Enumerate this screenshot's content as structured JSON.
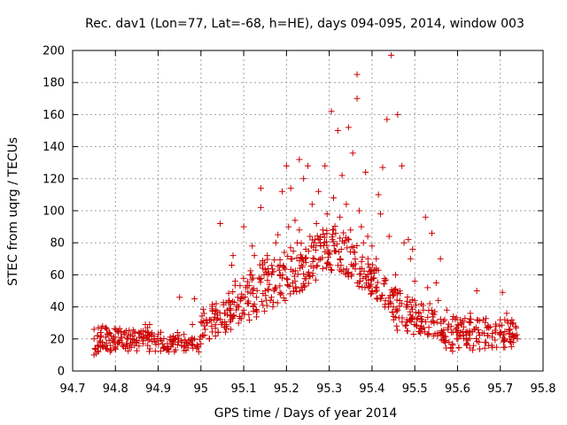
{
  "chart_data": {
    "type": "scatter",
    "title": "Rec. dav1 (Lon=77, Lat=-68, h=HE), days 094-095, 2014, window 003",
    "xlabel": "GPS time / Days of year 2014",
    "ylabel": "STEC from uqrg / TECUs",
    "xlim": [
      94.7,
      95.8
    ],
    "ylim": [
      0,
      200
    ],
    "x_ticks": [
      "94.7",
      "94.8",
      "94.9",
      "95",
      "95.1",
      "95.2",
      "95.3",
      "95.4",
      "95.5",
      "95.6",
      "95.7",
      "95.8"
    ],
    "y_ticks": [
      "0",
      "20",
      "40",
      "60",
      "80",
      "100",
      "120",
      "140",
      "160",
      "180",
      "200"
    ],
    "grid": true,
    "marker": "plus",
    "color": "#cc0000",
    "points": [
      [
        94.75,
        10
      ],
      [
        94.755,
        11
      ],
      [
        94.76,
        12
      ],
      [
        94.752,
        14
      ],
      [
        94.758,
        16
      ],
      [
        94.765,
        18
      ],
      [
        94.75,
        20
      ],
      [
        94.758,
        22
      ],
      [
        94.765,
        24
      ],
      [
        94.75,
        26
      ],
      [
        94.76,
        27
      ],
      [
        94.77,
        28
      ],
      [
        94.78,
        26
      ],
      [
        94.785,
        24
      ],
      [
        94.79,
        22
      ],
      [
        94.795,
        20
      ],
      [
        94.77,
        18
      ],
      [
        94.775,
        16
      ],
      [
        94.78,
        14
      ],
      [
        94.79,
        13
      ],
      [
        94.8,
        15
      ],
      [
        94.805,
        17
      ],
      [
        94.81,
        19
      ],
      [
        94.815,
        21
      ],
      [
        94.82,
        23
      ],
      [
        94.825,
        25
      ],
      [
        94.83,
        22
      ],
      [
        94.835,
        20
      ],
      [
        94.84,
        18
      ],
      [
        94.845,
        16
      ],
      [
        94.85,
        19
      ],
      [
        94.855,
        21
      ],
      [
        94.86,
        23
      ],
      [
        94.865,
        25
      ],
      [
        94.87,
        29
      ],
      [
        94.875,
        27
      ],
      [
        94.88,
        29
      ],
      [
        94.885,
        22
      ],
      [
        94.89,
        20
      ],
      [
        94.895,
        18
      ],
      [
        94.9,
        23
      ],
      [
        94.905,
        20
      ],
      [
        94.91,
        17
      ],
      [
        94.915,
        15
      ],
      [
        94.92,
        13
      ],
      [
        94.925,
        12
      ],
      [
        94.93,
        15
      ],
      [
        94.935,
        17
      ],
      [
        94.94,
        20
      ],
      [
        94.945,
        24
      ],
      [
        94.95,
        46
      ],
      [
        94.955,
        18
      ],
      [
        94.96,
        15
      ],
      [
        94.965,
        13
      ],
      [
        94.97,
        16
      ],
      [
        94.975,
        18
      ],
      [
        94.98,
        29
      ],
      [
        94.985,
        20
      ],
      [
        94.99,
        14
      ],
      [
        94.995,
        12
      ],
      [
        94.985,
        45
      ],
      [
        95.0,
        17
      ],
      [
        95.005,
        22
      ],
      [
        95.01,
        26
      ],
      [
        95.015,
        30
      ],
      [
        95.02,
        20
      ],
      [
        95.025,
        28
      ],
      [
        95.03,
        32
      ],
      [
        95.035,
        38
      ],
      [
        95.04,
        24
      ],
      [
        95.045,
        92
      ],
      [
        95.05,
        30
      ],
      [
        95.055,
        36
      ],
      [
        95.06,
        28
      ],
      [
        95.065,
        44
      ],
      [
        95.07,
        26
      ],
      [
        95.072,
        66
      ],
      [
        95.075,
        72
      ],
      [
        95.08,
        56
      ],
      [
        95.085,
        40
      ],
      [
        95.09,
        34
      ],
      [
        95.095,
        48
      ],
      [
        95.1,
        38
      ],
      [
        95.1,
        90
      ],
      [
        95.105,
        52
      ],
      [
        95.11,
        42
      ],
      [
        95.115,
        60
      ],
      [
        95.12,
        78
      ],
      [
        95.125,
        72
      ],
      [
        95.13,
        46
      ],
      [
        95.135,
        58
      ],
      [
        95.14,
        114
      ],
      [
        95.14,
        102
      ],
      [
        95.145,
        64
      ],
      [
        95.15,
        50
      ],
      [
        95.155,
        72
      ],
      [
        95.16,
        54
      ],
      [
        95.165,
        46
      ],
      [
        95.17,
        62
      ],
      [
        95.175,
        80
      ],
      [
        95.18,
        85
      ],
      [
        95.185,
        66
      ],
      [
        95.19,
        58
      ],
      [
        95.19,
        112
      ],
      [
        95.195,
        74
      ],
      [
        95.2,
        128
      ],
      [
        95.205,
        90
      ],
      [
        95.21,
        70
      ],
      [
        95.21,
        114
      ],
      [
        95.215,
        62
      ],
      [
        95.22,
        94
      ],
      [
        95.225,
        80
      ],
      [
        95.23,
        132
      ],
      [
        95.23,
        88
      ],
      [
        95.235,
        66
      ],
      [
        95.24,
        120
      ],
      [
        95.245,
        76
      ],
      [
        95.25,
        128
      ],
      [
        95.255,
        84
      ],
      [
        95.26,
        104
      ],
      [
        95.265,
        70
      ],
      [
        95.27,
        92
      ],
      [
        95.275,
        112
      ],
      [
        95.28,
        78
      ],
      [
        95.285,
        88
      ],
      [
        95.29,
        128
      ],
      [
        95.295,
        98
      ],
      [
        95.3,
        74
      ],
      [
        95.305,
        162
      ],
      [
        95.31,
        108
      ],
      [
        95.315,
        86
      ],
      [
        95.32,
        150
      ],
      [
        95.325,
        96
      ],
      [
        95.33,
        122
      ],
      [
        95.335,
        80
      ],
      [
        95.34,
        104
      ],
      [
        95.345,
        152
      ],
      [
        95.35,
        88
      ],
      [
        95.355,
        136
      ],
      [
        95.36,
        74
      ],
      [
        95.365,
        170
      ],
      [
        95.365,
        185
      ],
      [
        95.37,
        100
      ],
      [
        95.375,
        90
      ],
      [
        95.38,
        80
      ],
      [
        95.385,
        124
      ],
      [
        95.39,
        84
      ],
      [
        95.395,
        62
      ],
      [
        95.4,
        78
      ],
      [
        95.4,
        50
      ],
      [
        95.41,
        70
      ],
      [
        95.415,
        110
      ],
      [
        95.42,
        98
      ],
      [
        95.425,
        127
      ],
      [
        95.43,
        40
      ],
      [
        95.435,
        157
      ],
      [
        95.44,
        84
      ],
      [
        95.445,
        197
      ],
      [
        95.45,
        40
      ],
      [
        95.455,
        60
      ],
      [
        95.46,
        160
      ],
      [
        95.465,
        50
      ],
      [
        95.47,
        128
      ],
      [
        95.475,
        80
      ],
      [
        95.48,
        40
      ],
      [
        95.485,
        82
      ],
      [
        95.49,
        70
      ],
      [
        95.495,
        76
      ],
      [
        95.5,
        56
      ],
      [
        95.51,
        36
      ],
      [
        95.515,
        28
      ],
      [
        95.52,
        38
      ],
      [
        95.525,
        96
      ],
      [
        95.53,
        52
      ],
      [
        95.535,
        42
      ],
      [
        95.54,
        86
      ],
      [
        95.545,
        30
      ],
      [
        95.55,
        55
      ],
      [
        95.555,
        44
      ],
      [
        95.56,
        70
      ],
      [
        95.565,
        24
      ],
      [
        95.57,
        32
      ],
      [
        95.575,
        38
      ],
      [
        95.58,
        18
      ],
      [
        95.585,
        28
      ],
      [
        95.59,
        34
      ],
      [
        95.6,
        24
      ],
      [
        95.61,
        30
      ],
      [
        95.62,
        20
      ],
      [
        95.63,
        36
      ],
      [
        95.64,
        26
      ],
      [
        95.645,
        50
      ],
      [
        95.65,
        18
      ],
      [
        95.66,
        32
      ],
      [
        95.67,
        22
      ],
      [
        95.68,
        16
      ],
      [
        95.69,
        28
      ],
      [
        95.7,
        24
      ],
      [
        95.705,
        49
      ],
      [
        95.71,
        20
      ],
      [
        95.715,
        36
      ],
      [
        95.72,
        26
      ],
      [
        95.725,
        18
      ],
      [
        95.73,
        30
      ],
      [
        95.735,
        22
      ],
      [
        95.74,
        20
      ]
    ],
    "bands": [
      {
        "x0": 94.75,
        "x1": 95.0,
        "y0_start": 12,
        "y0_end": 12,
        "y1_start": 28,
        "y1_end": 22,
        "n": 150
      },
      {
        "x0": 95.0,
        "x1": 95.15,
        "y0_start": 16,
        "y0_end": 36,
        "y1_start": 38,
        "y1_end": 70,
        "n": 120
      },
      {
        "x0": 95.15,
        "x1": 95.32,
        "y0_start": 36,
        "y0_end": 64,
        "y1_start": 70,
        "y1_end": 92,
        "n": 150
      },
      {
        "x0": 95.32,
        "x1": 95.45,
        "y0_start": 64,
        "y0_end": 34,
        "y1_start": 92,
        "y1_end": 52,
        "n": 110
      },
      {
        "x0": 95.45,
        "x1": 95.57,
        "y0_start": 26,
        "y0_end": 18,
        "y1_start": 52,
        "y1_end": 34,
        "n": 100
      },
      {
        "x0": 95.57,
        "x1": 95.74,
        "y0_start": 12,
        "y0_end": 14,
        "y1_start": 34,
        "y1_end": 32,
        "n": 130
      }
    ]
  }
}
